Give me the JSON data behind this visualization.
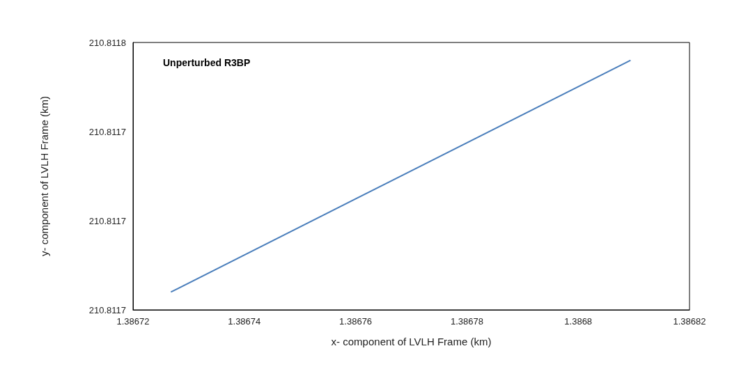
{
  "chart_data": {
    "type": "line",
    "title": "Unperturbed R3BP",
    "xlabel": "x- component of LVLH Frame (km)",
    "ylabel": "y- component of LVLH Frame (km)",
    "x": [
      1.3867268,
      1.3868094
    ],
    "series": [
      {
        "color": "#4a7ebb",
        "values": [
          210.811668,
          210.811772
        ]
      }
    ],
    "xlim": [
      1.38672,
      1.38682
    ],
    "xticks": [
      1.38672,
      1.38674,
      1.38676,
      1.38678,
      {
        "value": 1.3868,
        "label": "1.3868"
      },
      1.38682
    ],
    "ylim": [
      210.81166,
      210.81178
    ],
    "yticks": [
      {
        "value": 210.81166,
        "label": "210.8117"
      },
      {
        "value": 210.8117,
        "label": "210.8117"
      },
      {
        "value": 210.81174,
        "label": "210.8117"
      },
      {
        "value": 210.81178,
        "label": "210.8118"
      }
    ],
    "grid": false,
    "marker": "none",
    "line_style": "solid"
  }
}
